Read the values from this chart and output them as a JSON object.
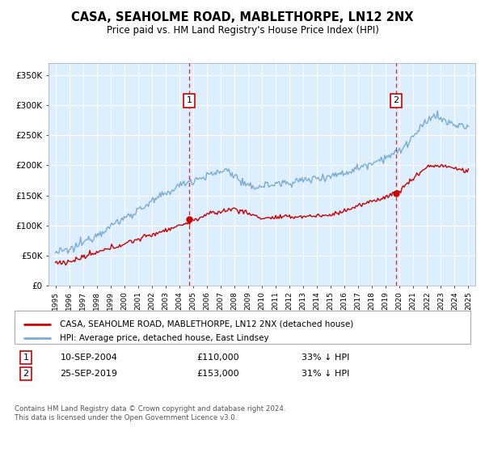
{
  "title": "CASA, SEAHOLME ROAD, MABLETHORPE, LN12 2NX",
  "subtitle": "Price paid vs. HM Land Registry's House Price Index (HPI)",
  "ylabel_ticks": [
    "£0",
    "£50K",
    "£100K",
    "£150K",
    "£200K",
    "£250K",
    "£300K",
    "£350K"
  ],
  "ylim": [
    0,
    370000
  ],
  "xlim_start": 1994.5,
  "xlim_end": 2025.5,
  "background_color": "#ddeeff",
  "grid_color": "#ffffff",
  "red_line_color": "#cc0000",
  "blue_line_color": "#7aadd4",
  "marker1_x": 2004.72,
  "marker2_x": 2019.73,
  "marker1_label": "1",
  "marker2_label": "2",
  "marker1_date": "10-SEP-2004",
  "marker1_price": "£110,000",
  "marker1_hpi": "33% ↓ HPI",
  "marker2_date": "25-SEP-2019",
  "marker2_price": "£153,000",
  "marker2_hpi": "31% ↓ HPI",
  "legend_line1": "CASA, SEAHOLME ROAD, MABLETHORPE, LN12 2NX (detached house)",
  "legend_line2": "HPI: Average price, detached house, East Lindsey",
  "footnote": "Contains HM Land Registry data © Crown copyright and database right 2024.\nThis data is licensed under the Open Government Licence v3.0.",
  "xtick_years": [
    1995,
    1996,
    1997,
    1998,
    1999,
    2000,
    2001,
    2002,
    2003,
    2004,
    2005,
    2006,
    2007,
    2008,
    2009,
    2010,
    2011,
    2012,
    2013,
    2014,
    2015,
    2016,
    2017,
    2018,
    2019,
    2020,
    2021,
    2022,
    2023,
    2024,
    2025
  ]
}
